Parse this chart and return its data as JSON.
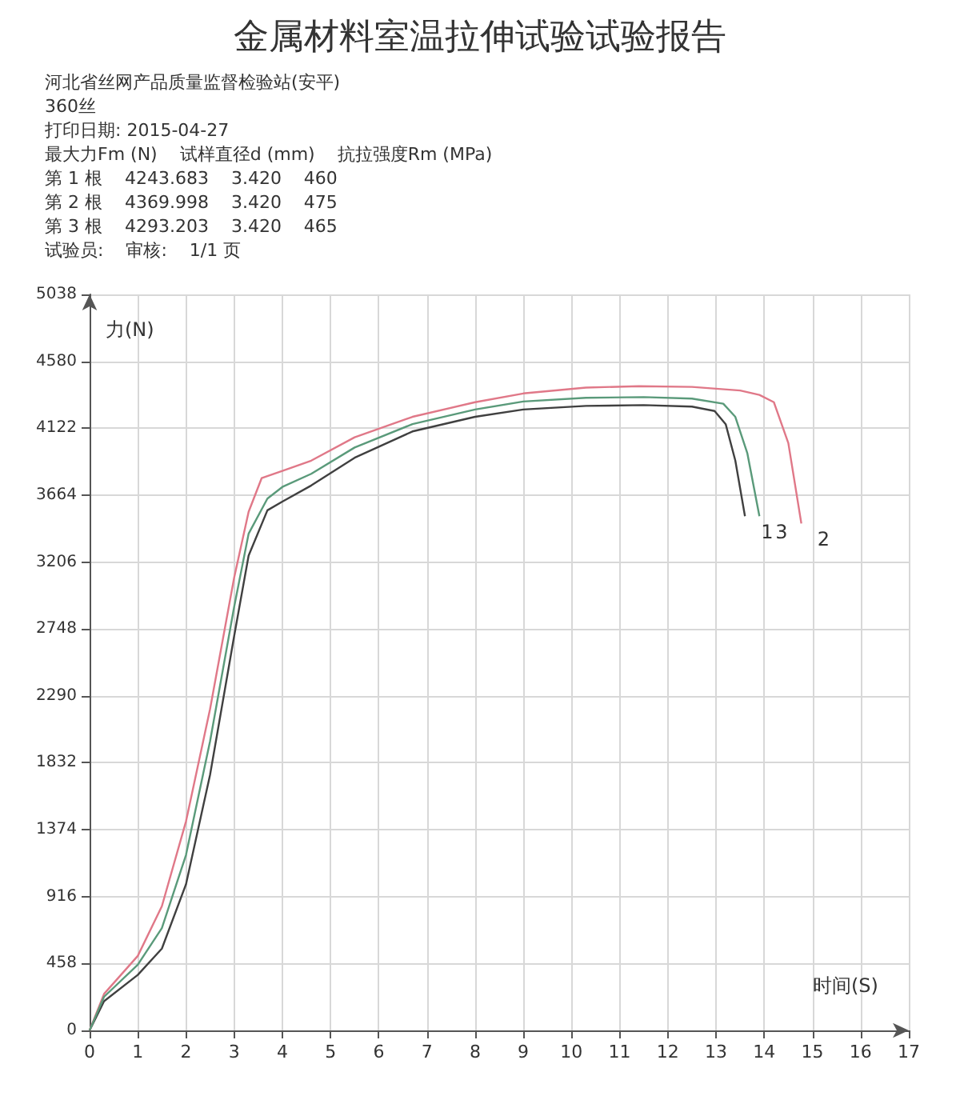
{
  "chart_data": {
    "type": "line",
    "title": "金属材料室温拉伸试验试验报告",
    "xlabel": "时间(S)",
    "ylabel": "力(N)",
    "annotations": [
      "河北省丝网产品质量监督检验站(安平)",
      "360丝",
      "打印日期: 2015-04-27",
      "最大力Fm (N)    试样直径d (mm)    抗拉强度Rm (MPa)",
      "第 1 根    4243.683    3.420    460",
      "第 2 根    4369.998    3.420    475",
      "第 3 根    4293.203    3.420    465",
      "试验员:    审核:    1/1 页"
    ],
    "xlim": [
      0,
      17
    ],
    "xticks": [
      0,
      1,
      2,
      3,
      4,
      5,
      6,
      7,
      8,
      9,
      10,
      11,
      12,
      13,
      14,
      15,
      16,
      17
    ],
    "ylim": [
      0,
      5038
    ],
    "yticks": [
      0,
      458,
      916,
      1374,
      1832,
      2290,
      2748,
      3206,
      3664,
      4122,
      4580,
      5038
    ],
    "grid": true,
    "legend": false,
    "marker": "none",
    "line_style": "solid",
    "series": [
      {
        "name": "1",
        "color": "#404040",
        "x": [
          0,
          0.3,
          1,
          1.5,
          2,
          2.5,
          3,
          3.3,
          3.69,
          4,
          4.6,
          5.5,
          6.7,
          8,
          9,
          10.3,
          11.5,
          12.5,
          12.97,
          13.2,
          13.4,
          13.6
        ],
        "values": [
          0,
          200,
          380,
          560,
          1000,
          1750,
          2700,
          3250,
          3560,
          3620,
          3730,
          3920,
          4100,
          4200,
          4250,
          4275,
          4280,
          4270,
          4240,
          4150,
          3900,
          3520
        ]
      },
      {
        "name": "2",
        "color": "#e07888",
        "x": [
          0,
          0.3,
          1,
          1.5,
          2,
          2.5,
          3,
          3.3,
          3.57,
          4,
          4.6,
          5.5,
          6.7,
          8,
          9,
          10.3,
          11.4,
          12.5,
          13.5,
          13.9,
          14.2,
          14.5,
          14.77
        ],
        "values": [
          0,
          250,
          510,
          850,
          1430,
          2200,
          3100,
          3550,
          3780,
          3830,
          3900,
          4060,
          4200,
          4300,
          4360,
          4400,
          4410,
          4405,
          4380,
          4350,
          4300,
          4020,
          3470
        ]
      },
      {
        "name": "3",
        "color": "#5a9a7a",
        "x": [
          0,
          0.3,
          1,
          1.5,
          2,
          2.5,
          3,
          3.3,
          3.69,
          4,
          4.6,
          5.5,
          6.7,
          8,
          9,
          10.3,
          11.5,
          12.5,
          13.15,
          13.4,
          13.65,
          13.9
        ],
        "values": [
          0,
          230,
          450,
          700,
          1200,
          1980,
          2900,
          3400,
          3640,
          3720,
          3810,
          3990,
          4150,
          4250,
          4305,
          4330,
          4335,
          4325,
          4290,
          4200,
          3950,
          3520
        ]
      }
    ]
  }
}
